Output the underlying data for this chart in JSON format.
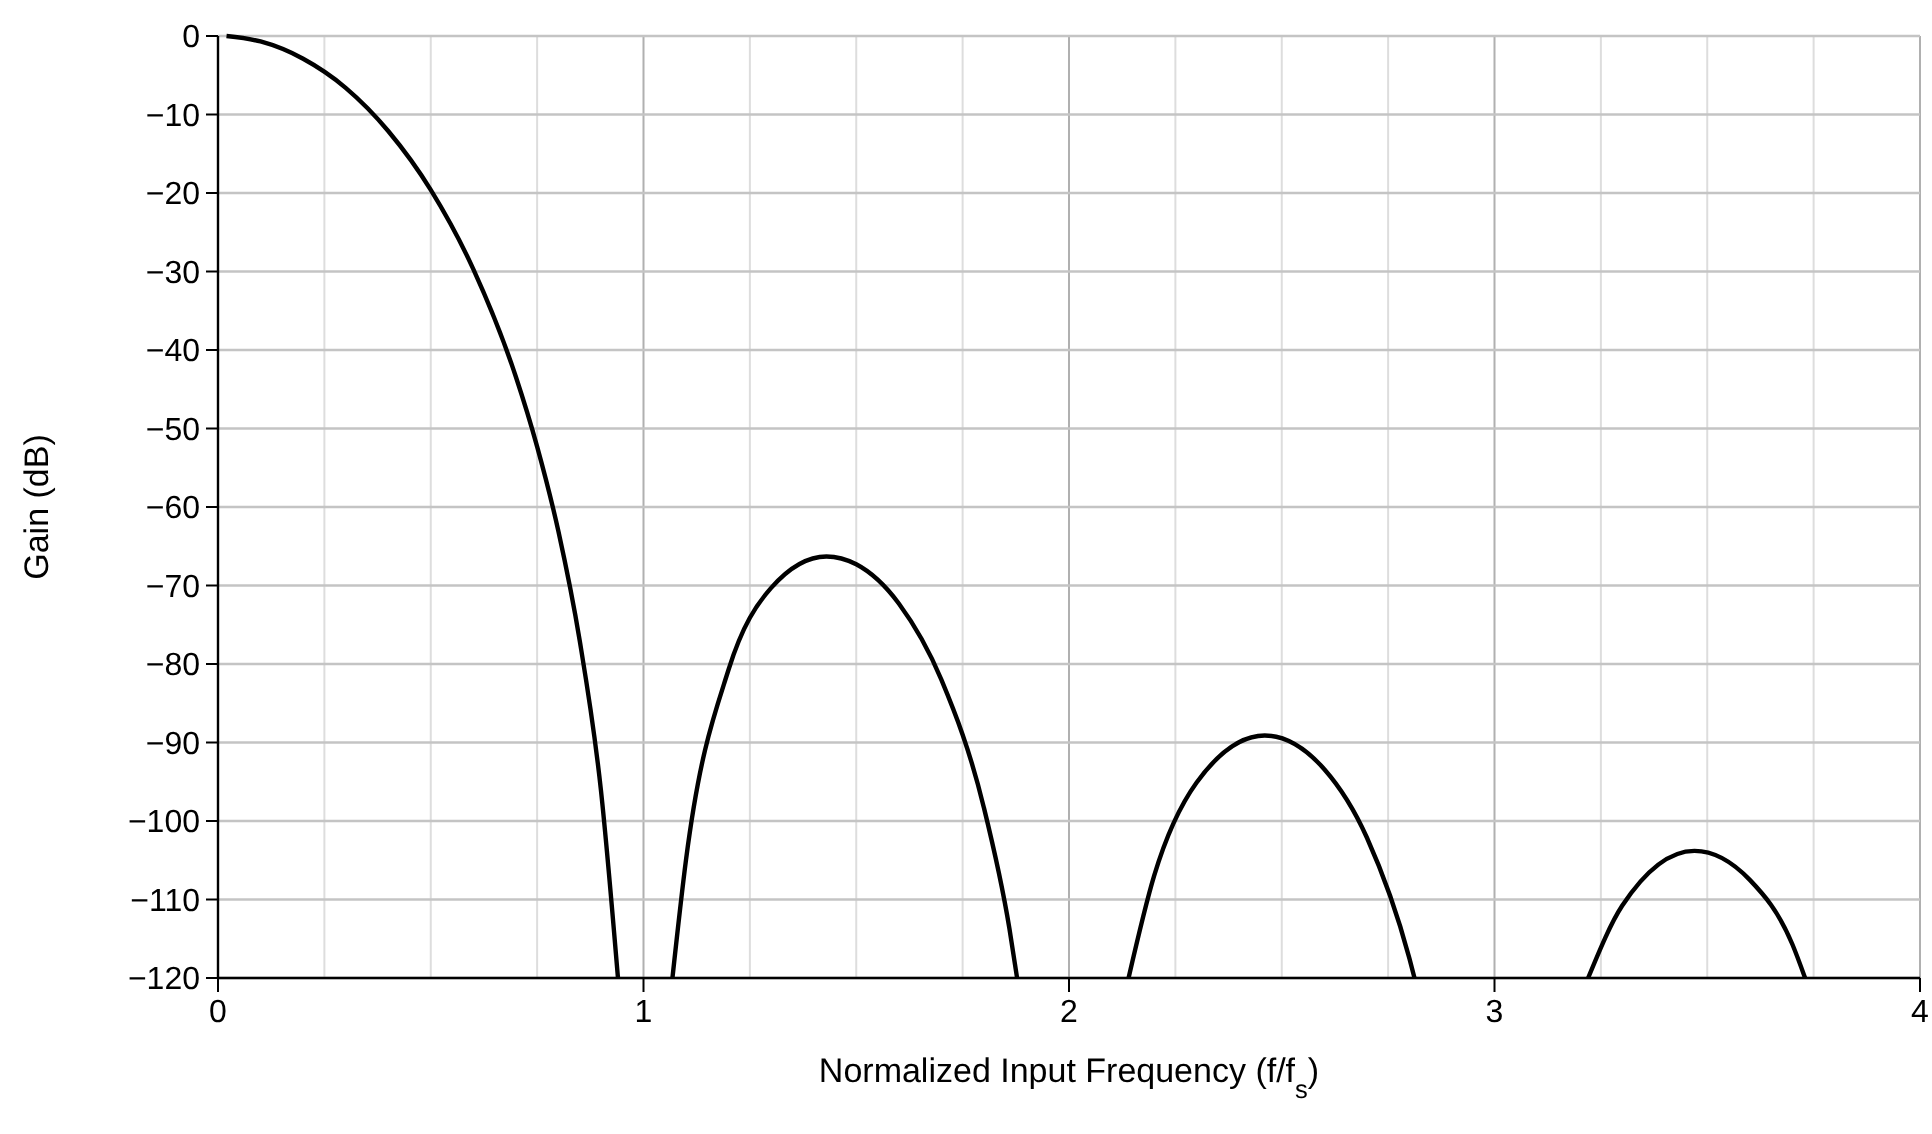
{
  "chart_data": {
    "type": "line",
    "xlabel": "Normalized Input Frequency (f/f$_{s}$)",
    "ylabel": "Gain (dB)",
    "xlim": [
      0,
      4
    ],
    "ylim": [
      -120,
      0
    ],
    "xticks": [
      0,
      {
        "value": 0.25,
        "label": null
      },
      {
        "value": 0.5,
        "label": null
      },
      {
        "value": 0.75,
        "label": null
      },
      1,
      {
        "value": 1.25,
        "label": null
      },
      {
        "value": 1.5,
        "label": null
      },
      {
        "value": 1.75,
        "label": null
      },
      2,
      {
        "value": 2.25,
        "label": null
      },
      {
        "value": 2.5,
        "label": null
      },
      {
        "value": 2.75,
        "label": null
      },
      3,
      {
        "value": 3.25,
        "label": null
      },
      {
        "value": 3.5,
        "label": null
      },
      {
        "value": 3.75,
        "label": null
      },
      4
    ],
    "yticks": [
      0,
      {
        "value": -10,
        "label": "−10"
      },
      {
        "value": -20,
        "label": "−20"
      },
      {
        "value": -30,
        "label": "−30"
      },
      {
        "value": -40,
        "label": "−40"
      },
      {
        "value": -50,
        "label": "−50"
      },
      {
        "value": -60,
        "label": "−60"
      },
      {
        "value": -70,
        "label": "−70"
      },
      {
        "value": -80,
        "label": "−80"
      },
      {
        "value": -90,
        "label": "−90"
      },
      {
        "value": -100,
        "label": "−100"
      },
      {
        "value": -110,
        "label": "−110"
      },
      {
        "value": -120,
        "label": "−120"
      }
    ],
    "grid": true,
    "marker": "none",
    "line_style": "solid",
    "series": [
      {
        "color": "#000000",
        "x": [
          0.02,
          0.1,
          0.2,
          0.3,
          0.4,
          0.5,
          0.6,
          0.7,
          0.75,
          0.8,
          0.85,
          0.9,
          0.94,
          1.0,
          1.068,
          1.1,
          1.2,
          1.3,
          1.43,
          1.5,
          1.6,
          1.7,
          1.8,
          1.86,
          1.878,
          2.0,
          2.14,
          2.2,
          2.3,
          2.46,
          2.6,
          2.7,
          2.8,
          2.812,
          3.0,
          3.22,
          3.3,
          3.47,
          3.6,
          3.7,
          3.73
        ],
        "values": [
          0,
          -0.7,
          -2.9,
          -6.6,
          -12.1,
          -19.6,
          -29.7,
          -43.4,
          -52.3,
          -63.1,
          -77,
          -96.1,
          -120,
          null,
          -120,
          -104.9,
          -80.7,
          -70.3,
          -66.3,
          -67.3,
          -72.3,
          -82,
          -98.3,
          -113.7,
          -120,
          null,
          -120,
          -107,
          -95.1,
          -89.1,
          -93.4,
          -102.1,
          -117.5,
          -120,
          null,
          -120,
          -110.8,
          -103.8,
          -107.5,
          -115.7,
          -120
        ]
      }
    ]
  }
}
